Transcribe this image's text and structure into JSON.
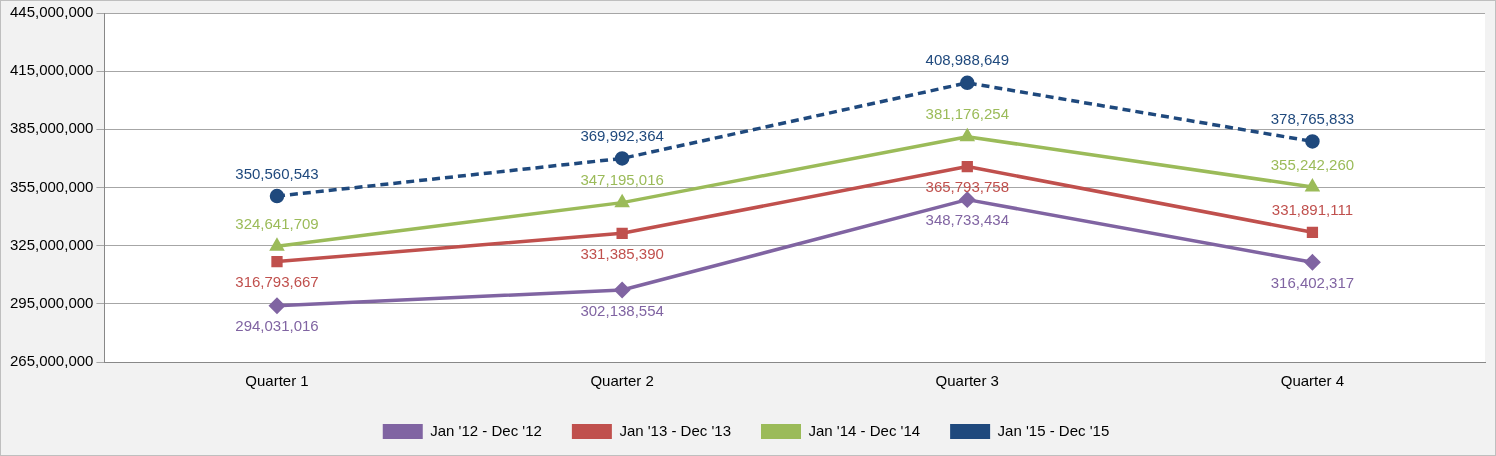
{
  "chart_data": {
    "type": "line",
    "categories": [
      "Quarter 1",
      "Quarter 2",
      "Quarter 3",
      "Quarter 4"
    ],
    "series": [
      {
        "name": "Jan '12 - Dec '12",
        "color": "#8064a2",
        "marker": "diamond",
        "values": [
          294031016,
          302138554,
          348733434,
          316402317
        ],
        "value_labels": [
          "294,031,016",
          "302,138,554",
          "348,733,434",
          "316,402,317"
        ]
      },
      {
        "name": "Jan '13 - Dec '13",
        "color": "#c0504d",
        "marker": "square",
        "values": [
          316793667,
          331385390,
          365793758,
          331891111
        ],
        "value_labels": [
          "316,793,667",
          "331,385,390",
          "365,793,758",
          "331,891,111"
        ]
      },
      {
        "name": "Jan '14 - Dec '14",
        "color": "#9bbb59",
        "marker": "triangle",
        "values": [
          324641709,
          347195016,
          381176254,
          355242260
        ],
        "value_labels": [
          "324,641,709",
          "347,195,016",
          "381,176,254",
          "355,242,260"
        ]
      },
      {
        "name": "Jan '15 - Dec '15",
        "color": "#1f497d",
        "marker": "circle",
        "line_style": "dashed",
        "values": [
          350560543,
          369992364,
          408988649,
          378765833
        ],
        "value_labels": [
          "350,560,543",
          "369,992,364",
          "408,988,649",
          "378,765,833"
        ]
      }
    ],
    "ylim": [
      265000000,
      445000000
    ],
    "yticks": [
      {
        "value": 265000000,
        "label": "265,000,000"
      },
      {
        "value": 295000000,
        "label": "295,000,000"
      },
      {
        "value": 325000000,
        "label": "325,000,000"
      },
      {
        "value": 355000000,
        "label": "355,000,000"
      },
      {
        "value": 385000000,
        "label": "385,000,000"
      },
      {
        "value": 415000000,
        "label": "415,000,000"
      },
      {
        "value": 445000000,
        "label": "445,000,000"
      }
    ],
    "grid": "y",
    "legend": "bottom"
  }
}
